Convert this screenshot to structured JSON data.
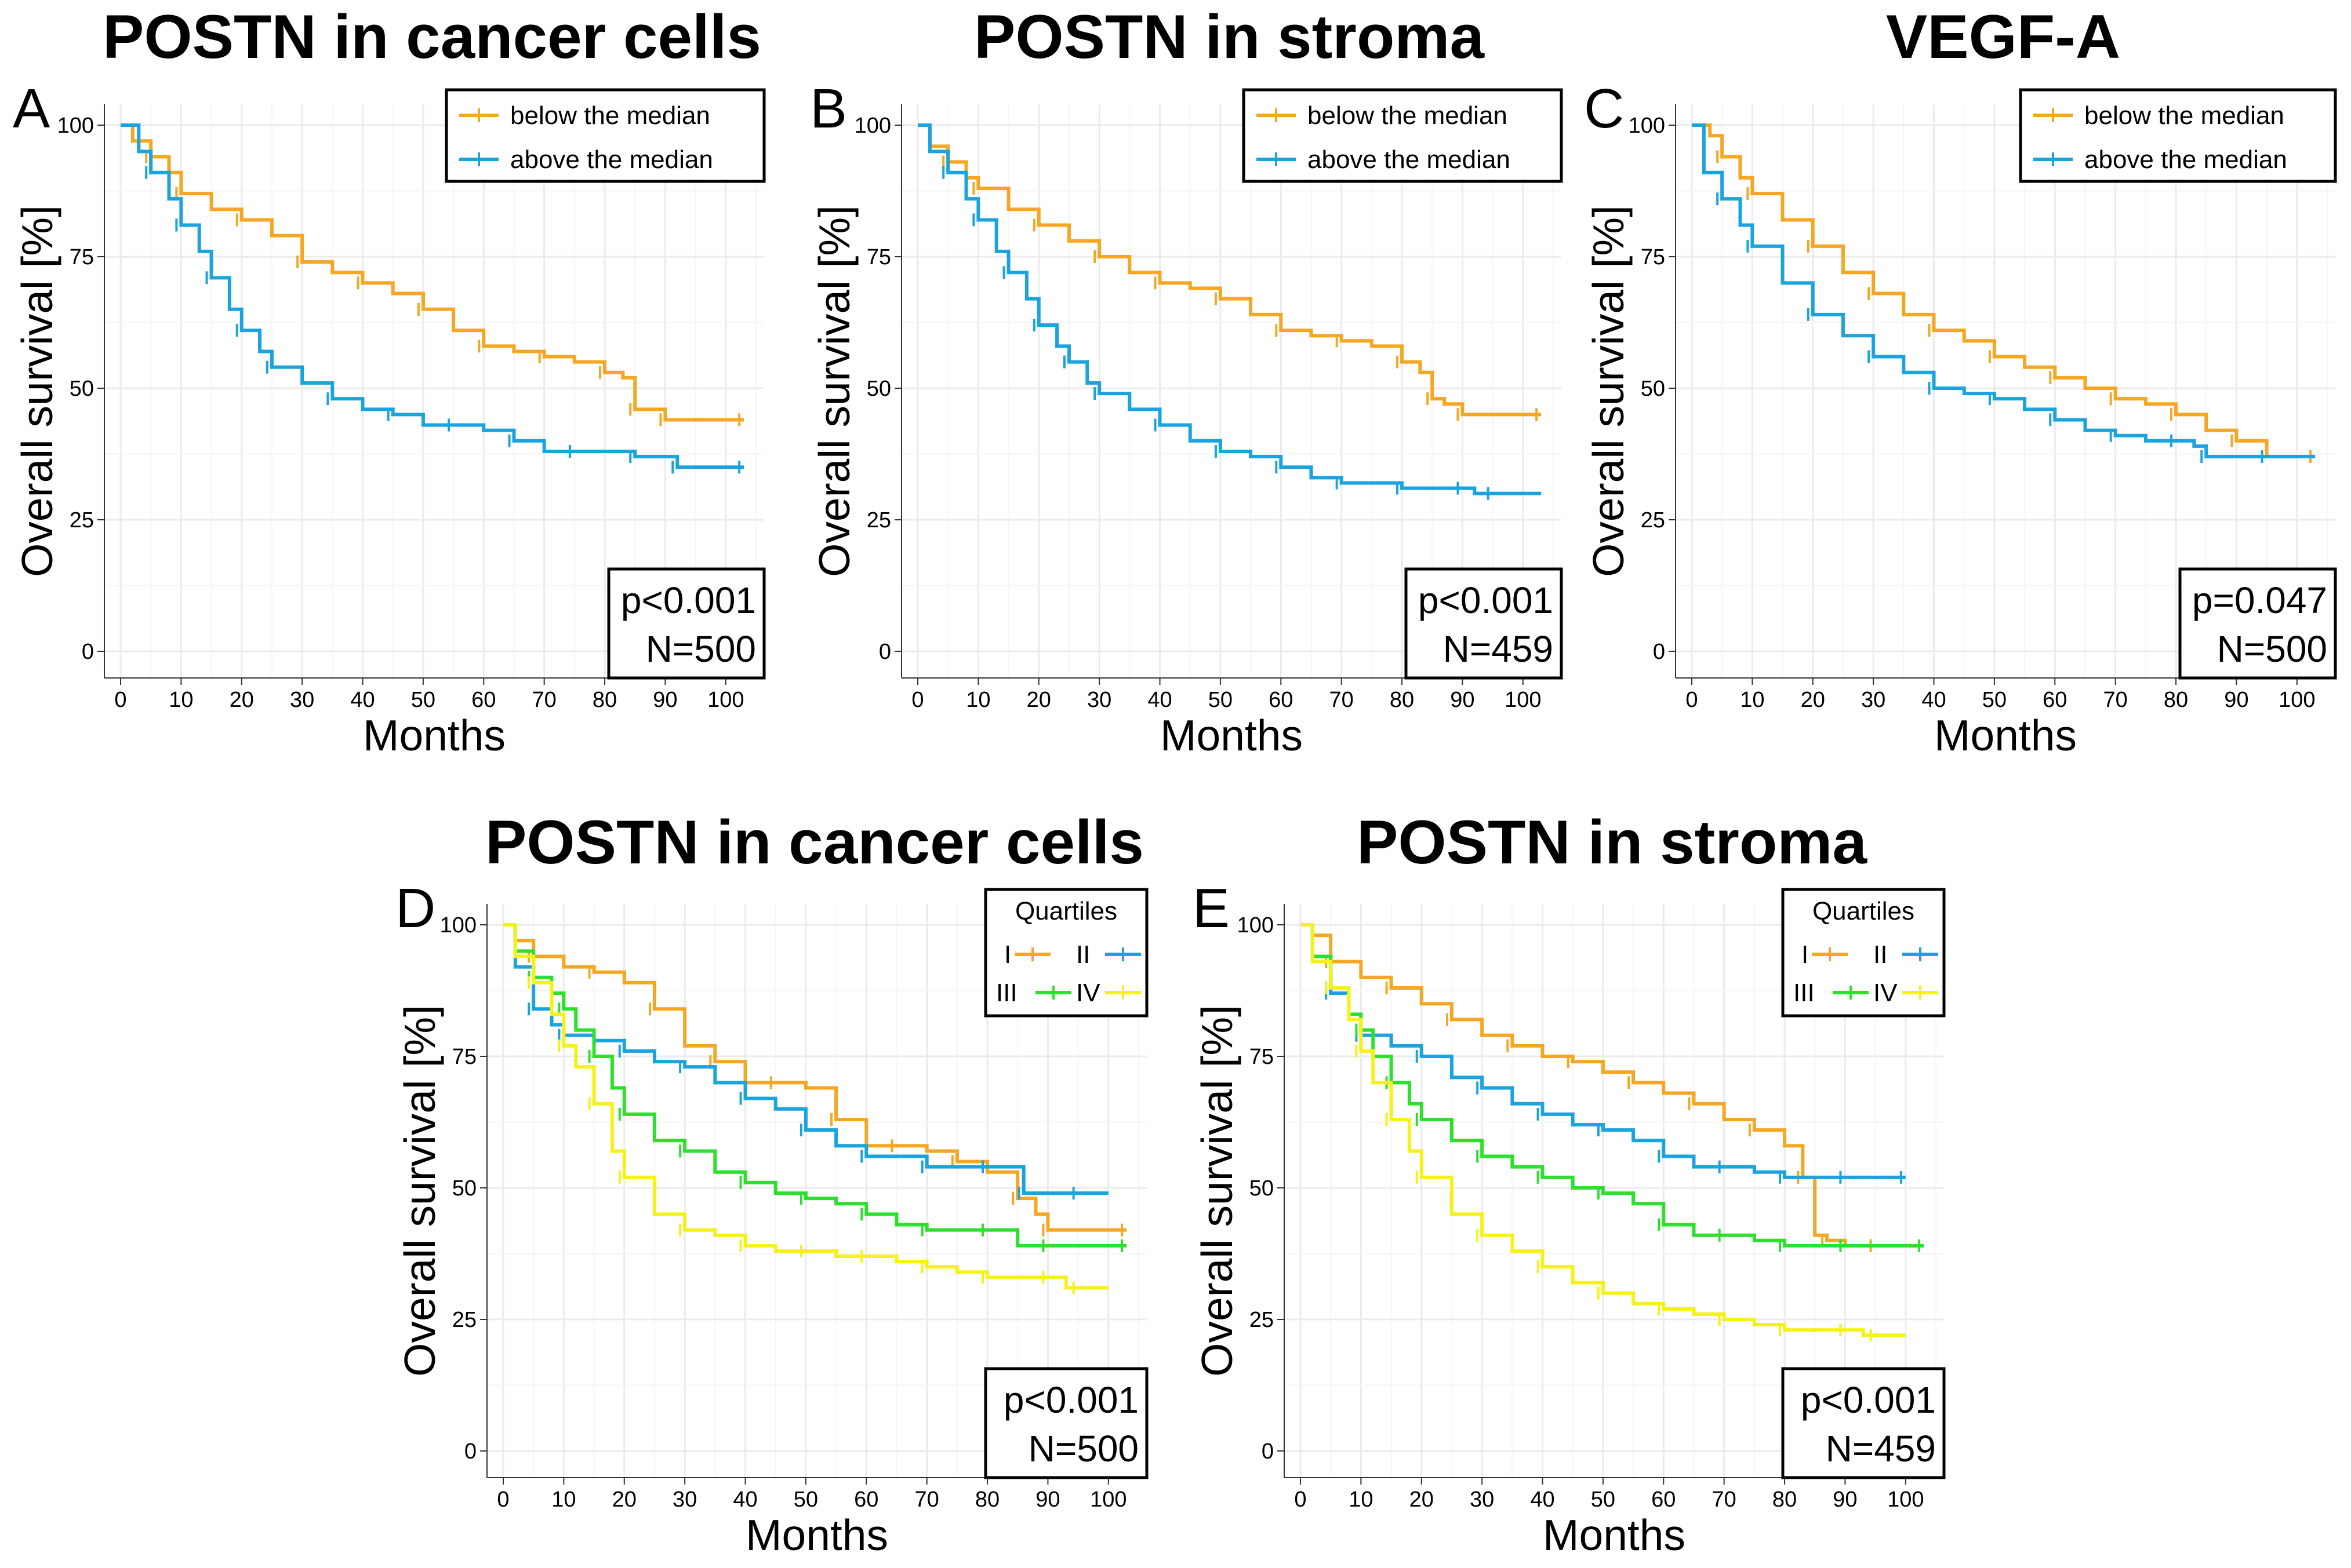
{
  "figure": {
    "panels": [
      "A",
      "B",
      "C",
      "D",
      "E"
    ]
  },
  "chart_data": [
    {
      "panel": "A",
      "type": "line",
      "subtype": "kaplan-meier",
      "title": "POSTN in cancer cells",
      "xlabel": "Months",
      "ylabel": "Overall survival [%]",
      "xlim": [
        0,
        105
      ],
      "ylim": [
        0,
        100
      ],
      "xticks": [
        0,
        10,
        20,
        30,
        40,
        50,
        60,
        70,
        80,
        90,
        100
      ],
      "yticks": [
        0,
        25,
        50,
        75,
        100
      ],
      "legend_title": "",
      "legend_position": "top-right",
      "legend_columns": 1,
      "stats": {
        "p": "p<0.001",
        "n": "N=500"
      },
      "series": [
        {
          "name": "below the median",
          "color": "#F5A623",
          "x": [
            0,
            2,
            5,
            8,
            10,
            15,
            20,
            25,
            30,
            35,
            40,
            45,
            50,
            55,
            60,
            65,
            70,
            75,
            80,
            83,
            85,
            87,
            90,
            95,
            103
          ],
          "y": [
            100,
            97,
            94,
            91,
            87,
            84,
            82,
            79,
            74,
            72,
            70,
            68,
            65,
            61,
            58,
            57,
            56,
            55,
            53,
            52,
            46,
            46,
            44,
            44,
            44
          ]
        },
        {
          "name": "above the median",
          "color": "#1BA3DD",
          "x": [
            0,
            3,
            5,
            8,
            10,
            13,
            15,
            18,
            20,
            23,
            25,
            30,
            35,
            40,
            45,
            50,
            55,
            60,
            65,
            70,
            75,
            80,
            85,
            90,
            92,
            95,
            103
          ],
          "y": [
            100,
            95,
            91,
            86,
            81,
            76,
            71,
            65,
            61,
            57,
            54,
            51,
            48,
            46,
            45,
            43,
            43,
            42,
            40,
            38,
            38,
            38,
            37,
            37,
            35,
            35,
            35
          ]
        }
      ]
    },
    {
      "panel": "B",
      "type": "line",
      "subtype": "kaplan-meier",
      "title": "POSTN in stroma",
      "xlabel": "Months",
      "ylabel": "Overall survival [%]",
      "xlim": [
        0,
        105
      ],
      "ylim": [
        0,
        100
      ],
      "xticks": [
        0,
        10,
        20,
        30,
        40,
        50,
        60,
        70,
        80,
        90,
        100
      ],
      "yticks": [
        0,
        25,
        50,
        75,
        100
      ],
      "legend_title": "",
      "legend_position": "top-right",
      "legend_columns": 1,
      "stats": {
        "p": "p<0.001",
        "n": "N=459"
      },
      "series": [
        {
          "name": "below the median",
          "color": "#F5A623",
          "x": [
            0,
            2,
            5,
            8,
            10,
            15,
            20,
            25,
            30,
            35,
            40,
            45,
            50,
            55,
            60,
            65,
            70,
            75,
            80,
            83,
            85,
            87,
            90,
            95,
            103
          ],
          "y": [
            100,
            96,
            93,
            90,
            88,
            84,
            81,
            78,
            75,
            72,
            70,
            69,
            67,
            64,
            61,
            60,
            59,
            58,
            55,
            53,
            48,
            47,
            45,
            45,
            45
          ]
        },
        {
          "name": "above the median",
          "color": "#1BA3DD",
          "x": [
            0,
            2,
            5,
            8,
            10,
            13,
            15,
            18,
            20,
            23,
            25,
            28,
            30,
            35,
            40,
            45,
            50,
            55,
            60,
            65,
            70,
            75,
            80,
            85,
            90,
            92,
            95,
            103
          ],
          "y": [
            100,
            95,
            91,
            86,
            82,
            76,
            72,
            67,
            62,
            58,
            55,
            51,
            49,
            46,
            43,
            40,
            38,
            37,
            35,
            33,
            32,
            32,
            31,
            31,
            31,
            30,
            30,
            30
          ]
        }
      ]
    },
    {
      "panel": "C",
      "type": "line",
      "subtype": "kaplan-meier",
      "title": "VEGF-A",
      "xlabel": "Months",
      "ylabel": "Overall survival [%]",
      "xlim": [
        0,
        105
      ],
      "ylim": [
        0,
        100
      ],
      "xticks": [
        0,
        10,
        20,
        30,
        40,
        50,
        60,
        70,
        80,
        90,
        100
      ],
      "yticks": [
        0,
        25,
        50,
        75,
        100
      ],
      "legend_title": "",
      "legend_position": "top-right",
      "legend_columns": 1,
      "stats": {
        "p": "p=0.047",
        "n": "N=500"
      },
      "series": [
        {
          "name": "below the median",
          "color": "#F5A623",
          "x": [
            0,
            3,
            5,
            8,
            10,
            15,
            20,
            25,
            30,
            35,
            40,
            45,
            50,
            55,
            60,
            65,
            70,
            75,
            80,
            85,
            90,
            95,
            103
          ],
          "y": [
            100,
            98,
            94,
            90,
            87,
            82,
            77,
            72,
            68,
            64,
            61,
            59,
            56,
            54,
            52,
            50,
            48,
            47,
            45,
            42,
            40,
            37,
            37
          ]
        },
        {
          "name": "above the median",
          "color": "#1BA3DD",
          "x": [
            0,
            2,
            5,
            8,
            10,
            15,
            20,
            25,
            30,
            35,
            40,
            45,
            50,
            55,
            60,
            65,
            70,
            75,
            80,
            83,
            85,
            90,
            95,
            103
          ],
          "y": [
            100,
            91,
            86,
            81,
            77,
            70,
            64,
            60,
            56,
            53,
            50,
            49,
            48,
            46,
            44,
            42,
            41,
            40,
            40,
            39,
            37,
            37,
            37,
            37
          ]
        }
      ]
    },
    {
      "panel": "D",
      "type": "line",
      "subtype": "kaplan-meier",
      "title": "POSTN in cancer cells",
      "xlabel": "Months",
      "ylabel": "Overall survival [%]",
      "xlim": [
        0,
        105
      ],
      "ylim": [
        0,
        100
      ],
      "xticks": [
        0,
        10,
        20,
        30,
        40,
        50,
        60,
        70,
        80,
        90,
        100
      ],
      "yticks": [
        0,
        25,
        50,
        75,
        100
      ],
      "legend_title": "Quartiles",
      "legend_position": "top-right",
      "legend_columns": 2,
      "stats": {
        "p": "p<0.001",
        "n": "N=500"
      },
      "series": [
        {
          "name": "I",
          "color": "#F5A623",
          "x": [
            0,
            2,
            5,
            10,
            15,
            20,
            25,
            30,
            35,
            40,
            45,
            50,
            55,
            60,
            65,
            70,
            75,
            80,
            85,
            88,
            90,
            95,
            103
          ],
          "y": [
            100,
            97,
            94,
            92,
            91,
            89,
            84,
            77,
            74,
            70,
            70,
            69,
            63,
            58,
            58,
            57,
            55,
            53,
            48,
            45,
            42,
            42,
            42
          ]
        },
        {
          "name": "II",
          "color": "#1BA3DD",
          "x": [
            0,
            2,
            5,
            8,
            10,
            15,
            20,
            25,
            30,
            35,
            40,
            45,
            50,
            55,
            60,
            65,
            70,
            75,
            80,
            85,
            86,
            90,
            95,
            100
          ],
          "y": [
            100,
            92,
            84,
            81,
            79,
            78,
            76,
            74,
            73,
            70,
            67,
            65,
            61,
            58,
            56,
            56,
            54,
            54,
            54,
            54,
            49,
            49,
            49,
            49
          ]
        },
        {
          "name": "III",
          "color": "#2EE02E",
          "x": [
            0,
            2,
            5,
            8,
            10,
            12,
            15,
            18,
            20,
            25,
            30,
            35,
            40,
            45,
            50,
            55,
            60,
            65,
            70,
            75,
            80,
            85,
            90,
            95,
            103
          ],
          "y": [
            100,
            95,
            90,
            87,
            84,
            80,
            75,
            69,
            64,
            59,
            57,
            53,
            51,
            49,
            48,
            47,
            45,
            43,
            42,
            42,
            42,
            39,
            39,
            39,
            39
          ]
        },
        {
          "name": "IV",
          "color": "#F5F219",
          "x": [
            0,
            2,
            5,
            8,
            10,
            12,
            15,
            18,
            20,
            25,
            30,
            35,
            40,
            45,
            50,
            55,
            60,
            65,
            70,
            75,
            80,
            85,
            90,
            93,
            95,
            100
          ],
          "y": [
            100,
            94,
            89,
            83,
            77,
            73,
            66,
            57,
            52,
            45,
            42,
            41,
            39,
            38,
            38,
            37,
            37,
            36,
            35,
            34,
            33,
            33,
            33,
            31,
            31,
            31
          ]
        }
      ]
    },
    {
      "panel": "E",
      "type": "line",
      "subtype": "kaplan-meier",
      "title": "POSTN in stroma",
      "xlabel": "Months",
      "ylabel": "Overall survival [%]",
      "xlim": [
        0,
        105
      ],
      "ylim": [
        0,
        100
      ],
      "xticks": [
        0,
        10,
        20,
        30,
        40,
        50,
        60,
        70,
        80,
        90,
        100
      ],
      "yticks": [
        0,
        25,
        50,
        75,
        100
      ],
      "legend_title": "Quartiles",
      "legend_position": "top-right",
      "legend_columns": 2,
      "stats": {
        "p": "p<0.001",
        "n": "N=459"
      },
      "series": [
        {
          "name": "I",
          "color": "#F5A623",
          "x": [
            0,
            2,
            5,
            10,
            15,
            20,
            25,
            30,
            35,
            40,
            45,
            50,
            55,
            60,
            65,
            70,
            75,
            80,
            83,
            85,
            87,
            90,
            95,
            103
          ],
          "y": [
            100,
            98,
            93,
            90,
            88,
            85,
            82,
            79,
            77,
            75,
            74,
            72,
            70,
            68,
            66,
            63,
            61,
            58,
            52,
            41,
            40,
            39,
            39,
            39
          ]
        },
        {
          "name": "II",
          "color": "#1BA3DD",
          "x": [
            0,
            2,
            5,
            8,
            10,
            15,
            20,
            25,
            30,
            35,
            40,
            45,
            50,
            55,
            60,
            65,
            70,
            75,
            80,
            85,
            90,
            95,
            100
          ],
          "y": [
            100,
            93,
            87,
            82,
            79,
            77,
            75,
            71,
            69,
            66,
            64,
            62,
            61,
            59,
            56,
            54,
            54,
            53,
            52,
            52,
            52,
            52,
            52
          ]
        },
        {
          "name": "III",
          "color": "#2EE02E",
          "x": [
            0,
            2,
            5,
            8,
            10,
            12,
            15,
            18,
            20,
            25,
            30,
            35,
            40,
            45,
            50,
            55,
            60,
            65,
            70,
            75,
            80,
            85,
            90,
            95,
            103
          ],
          "y": [
            100,
            94,
            88,
            83,
            80,
            75,
            70,
            66,
            63,
            59,
            56,
            54,
            52,
            50,
            49,
            47,
            43,
            41,
            41,
            40,
            39,
            39,
            39,
            39,
            39
          ]
        },
        {
          "name": "IV",
          "color": "#F5F219",
          "x": [
            0,
            2,
            5,
            8,
            10,
            12,
            15,
            18,
            20,
            25,
            30,
            35,
            40,
            45,
            50,
            55,
            60,
            65,
            70,
            75,
            80,
            85,
            90,
            93,
            95,
            100
          ],
          "y": [
            100,
            93,
            88,
            82,
            76,
            70,
            63,
            57,
            52,
            45,
            41,
            38,
            35,
            32,
            30,
            28,
            27,
            26,
            25,
            24,
            23,
            23,
            23,
            22,
            22,
            22
          ]
        }
      ]
    }
  ]
}
